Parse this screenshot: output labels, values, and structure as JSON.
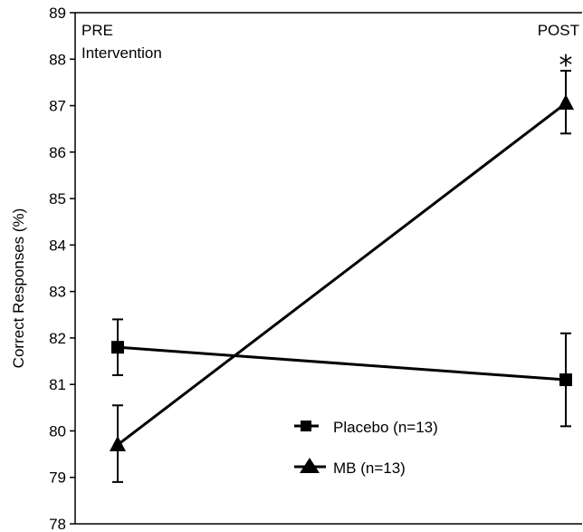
{
  "chart_data": {
    "type": "line",
    "title": "",
    "xlabel": "",
    "ylabel": "Correct Responses (%)",
    "ylim": [
      78,
      89
    ],
    "yticks": [
      78,
      79,
      80,
      81,
      82,
      83,
      84,
      85,
      86,
      87,
      88,
      89
    ],
    "categories": [
      "PRE",
      "POST"
    ],
    "annotations": {
      "pre_line1": "PRE",
      "pre_line2": "Intervention",
      "post": "POST",
      "significance": "*"
    },
    "legend_position": "bottom-right",
    "series": [
      {
        "name": "Placebo (n=13)",
        "marker": "square",
        "values": [
          81.8,
          81.1
        ],
        "error_low": [
          81.2,
          80.1
        ],
        "error_high": [
          82.4,
          82.1
        ]
      },
      {
        "name": "MB (n=13)",
        "marker": "triangle",
        "values": [
          79.7,
          87.05
        ],
        "error_low": [
          78.9,
          86.4
        ],
        "error_high": [
          80.55,
          87.75
        ]
      }
    ],
    "colors": {
      "line": "#000000",
      "background": "#ffffff"
    }
  }
}
